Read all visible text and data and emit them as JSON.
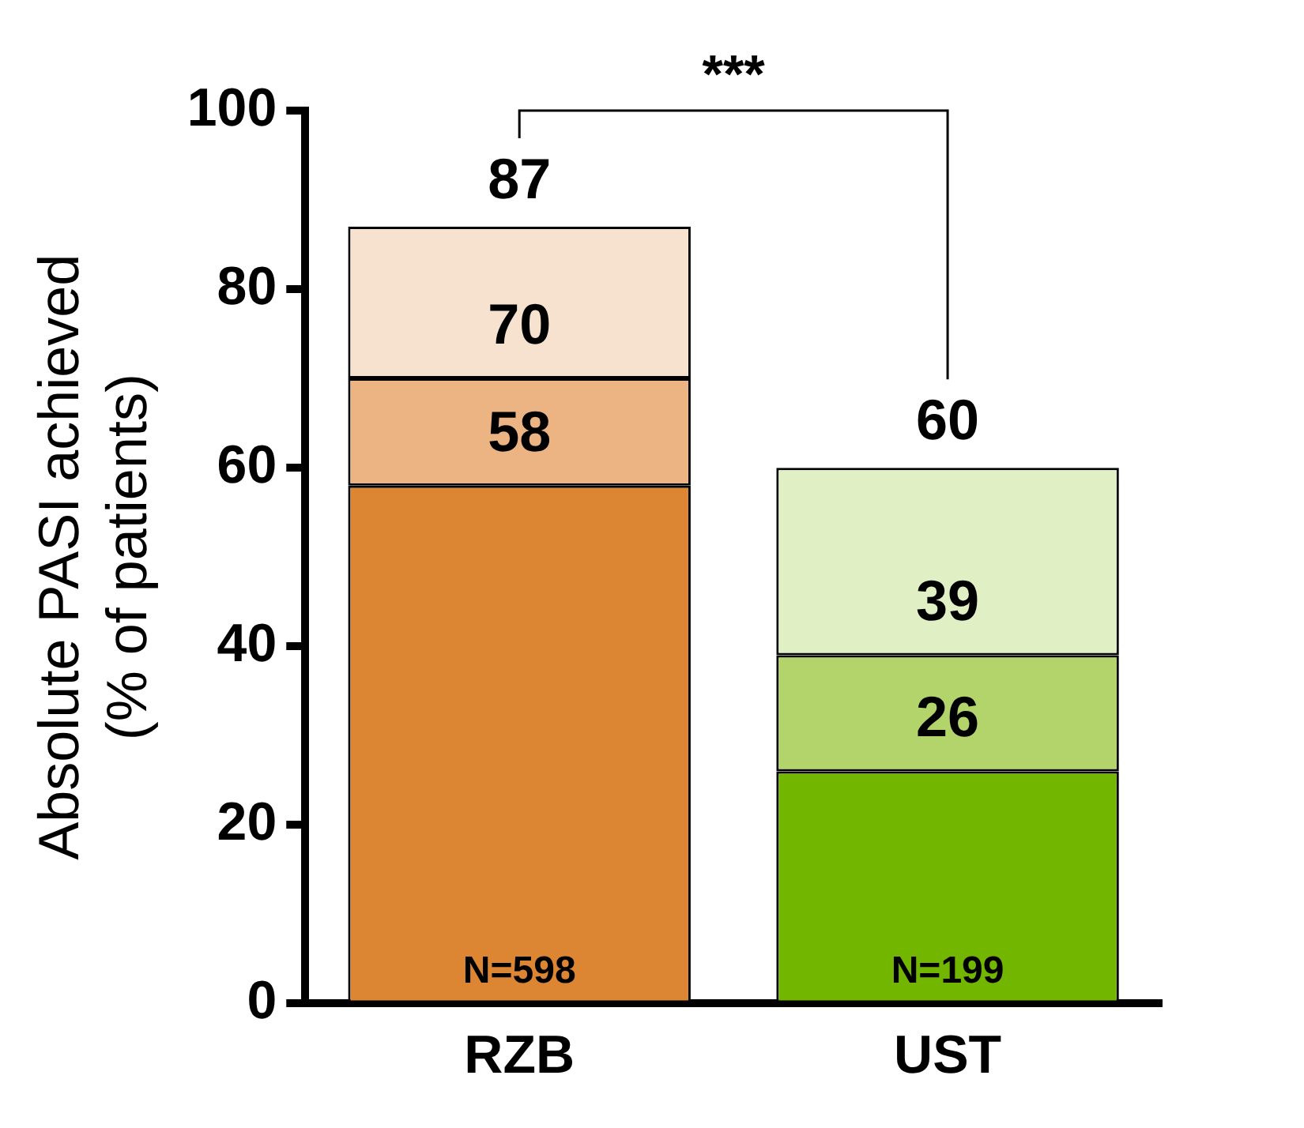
{
  "chart_data": {
    "type": "bar",
    "stacked": true,
    "categories": [
      "RZB",
      "UST"
    ],
    "ylabel": "Absolute PASI achieved\n(% of patients)",
    "ylim": [
      0,
      100
    ],
    "yticks": [
      0,
      20,
      40,
      60,
      80,
      100
    ],
    "series": [
      {
        "colors": [
          "#dc8532",
          "#72b600"
        ],
        "values": [
          58,
          26
        ]
      },
      {
        "colors": [
          "#ecb483",
          "#b2d46a"
        ],
        "values": [
          12,
          13
        ]
      },
      {
        "colors": [
          "#f6e2cf",
          "#e1efc4"
        ],
        "values": [
          17,
          21
        ]
      }
    ],
    "totals": [
      "87",
      "60"
    ],
    "annotations": [
      "***",
      {
        "text": "N=598",
        "x": "RZB",
        "y": 0
      },
      {
        "text": "N=199",
        "x": "UST",
        "y": 0
      },
      {
        "text": "58",
        "x": "RZB",
        "y": 58
      },
      {
        "text": "70",
        "x": "RZB",
        "y": 70
      },
      {
        "text": "26",
        "x": "UST",
        "y": 26
      },
      {
        "text": "39",
        "x": "UST",
        "y": 39
      }
    ]
  }
}
